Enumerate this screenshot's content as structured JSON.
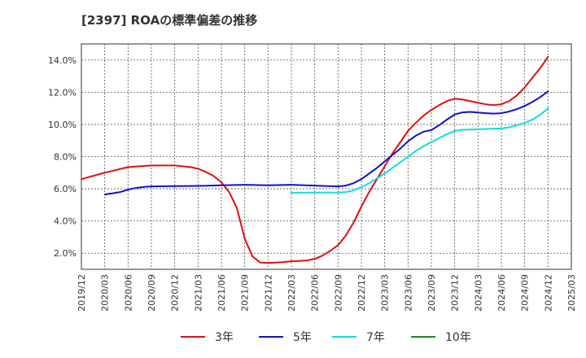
{
  "chart_data": {
    "type": "line",
    "title": "[2397]  ROAの標準偏差の推移",
    "xlabel": "",
    "ylabel": "",
    "ylim": [
      1.0,
      15.0
    ],
    "yticks": [
      2.0,
      4.0,
      6.0,
      8.0,
      10.0,
      12.0,
      14.0
    ],
    "ytick_labels": [
      "2.0%",
      "4.0%",
      "6.0%",
      "8.0%",
      "10.0%",
      "12.0%",
      "14.0%"
    ],
    "xticks": [
      "2019/12",
      "2020/03",
      "2020/06",
      "2020/09",
      "2020/12",
      "2021/03",
      "2021/06",
      "2021/09",
      "2021/12",
      "2022/03",
      "2022/06",
      "2022/09",
      "2022/12",
      "2023/03",
      "2023/06",
      "2023/09",
      "2023/12",
      "2024/03",
      "2024/06",
      "2024/09",
      "2024/12",
      "2025/03"
    ],
    "grid": true,
    "legend_position": "bottom",
    "series": [
      {
        "name": "3年",
        "color": "#dd1111",
        "points": [
          [
            "2019/12",
            6.6
          ],
          [
            "2020/03",
            7.0
          ],
          [
            "2020/06",
            7.35
          ],
          [
            "2020/09",
            7.45
          ],
          [
            "2020/12",
            7.45
          ],
          [
            "2021/01",
            7.4
          ],
          [
            "2021/02",
            7.35
          ],
          [
            "2021/03",
            7.25
          ],
          [
            "2021/04",
            7.05
          ],
          [
            "2021/05",
            6.8
          ],
          [
            "2021/06",
            6.4
          ],
          [
            "2021/07",
            5.8
          ],
          [
            "2021/08",
            4.8
          ],
          [
            "2021/09",
            2.9
          ],
          [
            "2021/10",
            1.8
          ],
          [
            "2021/11",
            1.42
          ],
          [
            "2021/12",
            1.4
          ],
          [
            "2022/01",
            1.42
          ],
          [
            "2022/02",
            1.45
          ],
          [
            "2022/03",
            1.5
          ],
          [
            "2022/04",
            1.52
          ],
          [
            "2022/05",
            1.55
          ],
          [
            "2022/06",
            1.65
          ],
          [
            "2022/07",
            1.85
          ],
          [
            "2022/08",
            2.15
          ],
          [
            "2022/09",
            2.5
          ],
          [
            "2022/10",
            3.1
          ],
          [
            "2022/11",
            3.9
          ],
          [
            "2022/12",
            4.9
          ],
          [
            "2023/01",
            5.8
          ],
          [
            "2023/02",
            6.6
          ],
          [
            "2023/03",
            7.4
          ],
          [
            "2023/04",
            8.2
          ],
          [
            "2023/05",
            8.9
          ],
          [
            "2023/06",
            9.6
          ],
          [
            "2023/07",
            10.1
          ],
          [
            "2023/08",
            10.55
          ],
          [
            "2023/09",
            10.9
          ],
          [
            "2023/10",
            11.2
          ],
          [
            "2023/11",
            11.45
          ],
          [
            "2023/12",
            11.6
          ],
          [
            "2024/01",
            11.55
          ],
          [
            "2024/02",
            11.45
          ],
          [
            "2024/03",
            11.35
          ],
          [
            "2024/04",
            11.25
          ],
          [
            "2024/05",
            11.2
          ],
          [
            "2024/06",
            11.25
          ],
          [
            "2024/07",
            11.45
          ],
          [
            "2024/08",
            11.8
          ],
          [
            "2024/09",
            12.3
          ],
          [
            "2024/10",
            12.9
          ],
          [
            "2024/11",
            13.5
          ],
          [
            "2024/12",
            14.2
          ]
        ]
      },
      {
        "name": "5年",
        "color": "#1111cc",
        "points": [
          [
            "2020/03",
            5.65
          ],
          [
            "2020/04",
            5.72
          ],
          [
            "2020/05",
            5.8
          ],
          [
            "2020/06",
            5.95
          ],
          [
            "2020/07",
            6.05
          ],
          [
            "2020/08",
            6.12
          ],
          [
            "2020/09",
            6.15
          ],
          [
            "2020/12",
            6.17
          ],
          [
            "2021/03",
            6.18
          ],
          [
            "2021/06",
            6.22
          ],
          [
            "2021/09",
            6.25
          ],
          [
            "2021/12",
            6.22
          ],
          [
            "2022/03",
            6.25
          ],
          [
            "2022/06",
            6.2
          ],
          [
            "2022/09",
            6.15
          ],
          [
            "2022/10",
            6.2
          ],
          [
            "2022/11",
            6.35
          ],
          [
            "2022/12",
            6.6
          ],
          [
            "2023/01",
            6.95
          ],
          [
            "2023/02",
            7.3
          ],
          [
            "2023/03",
            7.7
          ],
          [
            "2023/04",
            8.1
          ],
          [
            "2023/05",
            8.5
          ],
          [
            "2023/06",
            8.95
          ],
          [
            "2023/07",
            9.3
          ],
          [
            "2023/08",
            9.55
          ],
          [
            "2023/09",
            9.65
          ],
          [
            "2023/10",
            9.95
          ],
          [
            "2023/11",
            10.3
          ],
          [
            "2023/12",
            10.62
          ],
          [
            "2024/01",
            10.75
          ],
          [
            "2024/02",
            10.78
          ],
          [
            "2024/03",
            10.74
          ],
          [
            "2024/04",
            10.7
          ],
          [
            "2024/05",
            10.67
          ],
          [
            "2024/06",
            10.7
          ],
          [
            "2024/07",
            10.8
          ],
          [
            "2024/08",
            10.95
          ],
          [
            "2024/09",
            11.15
          ],
          [
            "2024/10",
            11.4
          ],
          [
            "2024/11",
            11.7
          ],
          [
            "2024/12",
            12.05
          ]
        ]
      },
      {
        "name": "7年",
        "color": "#11dddd",
        "points": [
          [
            "2022/03",
            5.75
          ],
          [
            "2022/06",
            5.77
          ],
          [
            "2022/09",
            5.77
          ],
          [
            "2022/10",
            5.8
          ],
          [
            "2022/11",
            5.9
          ],
          [
            "2022/12",
            6.1
          ],
          [
            "2023/01",
            6.35
          ],
          [
            "2023/02",
            6.65
          ],
          [
            "2023/03",
            6.95
          ],
          [
            "2023/04",
            7.3
          ],
          [
            "2023/05",
            7.65
          ],
          [
            "2023/06",
            8.0
          ],
          [
            "2023/07",
            8.35
          ],
          [
            "2023/08",
            8.65
          ],
          [
            "2023/09",
            8.9
          ],
          [
            "2023/10",
            9.15
          ],
          [
            "2023/11",
            9.4
          ],
          [
            "2023/12",
            9.6
          ],
          [
            "2024/01",
            9.67
          ],
          [
            "2024/03",
            9.7
          ],
          [
            "2024/06",
            9.75
          ],
          [
            "2024/07",
            9.82
          ],
          [
            "2024/08",
            9.95
          ],
          [
            "2024/09",
            10.1
          ],
          [
            "2024/10",
            10.3
          ],
          [
            "2024/11",
            10.6
          ],
          [
            "2024/12",
            11.0
          ]
        ]
      },
      {
        "name": "10年",
        "color": "#228822",
        "points": []
      }
    ]
  }
}
